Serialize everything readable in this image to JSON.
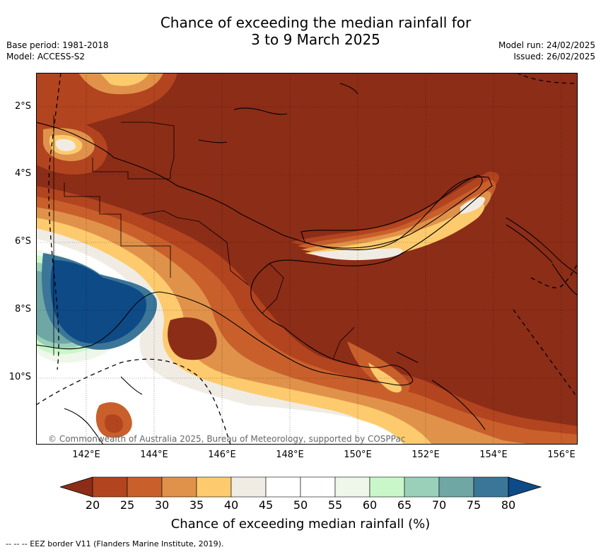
{
  "title": {
    "line1": "Chance of exceeding the median rainfall for",
    "line2": "3 to 9 March 2025"
  },
  "meta": {
    "base_period": "Base period: 1981-2018",
    "model": "Model: ACCESS-S2",
    "model_run": "Model run: 24/02/2025",
    "issued": "Issued: 26/02/2025"
  },
  "map": {
    "lat_labels": [
      "2°S",
      "4°S",
      "6°S",
      "8°S",
      "10°S"
    ],
    "lon_labels": [
      "142°E",
      "144°E",
      "146°E",
      "148°E",
      "150°E",
      "152°E",
      "154°E",
      "156°E"
    ],
    "credit": "© Commonwealth of Australia 2025, Bureau of Meteorology, supported by COSPPac"
  },
  "colorbar": {
    "ticks": [
      "20",
      "25",
      "30",
      "35",
      "40",
      "45",
      "50",
      "55",
      "60",
      "65",
      "70",
      "75",
      "80"
    ],
    "colors": [
      "#8c2d18",
      "#b2441f",
      "#c9602c",
      "#e0924a",
      "#fdcb6e",
      "#f0ece4",
      "#ffffff",
      "#ffffff",
      "#eef7ea",
      "#c9f7c9",
      "#9acfb9",
      "#6fa7a5",
      "#3b7699",
      "#0e4a86"
    ],
    "title": "Chance of exceeding median rainfall (%)"
  },
  "footnote": "-- -- -- EEZ border V11 (Flanders Marine Institute, 2019)."
}
